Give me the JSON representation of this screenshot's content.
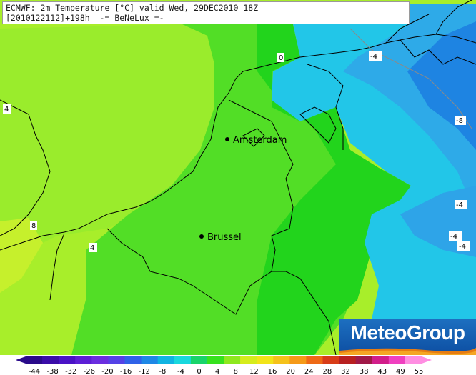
{
  "header": {
    "line1": "ECMWF: 2m Temperature [°C] valid Wed, 29DEC2010 18Z",
    "line2": "[2010122112]+198h  -= BeNeLux =-"
  },
  "logo": {
    "text": "MeteoGroup"
  },
  "cities": [
    {
      "name": "Amsterdam"
    },
    {
      "name": "Brussel"
    }
  ],
  "contour_labels": [
    "0",
    "-4",
    "-8",
    "4",
    "8",
    "4",
    "-4",
    "-4",
    "-4"
  ],
  "legend": {
    "ticks": [
      "-44",
      "-38",
      "-32",
      "-26",
      "-20",
      "-16",
      "-12",
      "-8",
      "-4",
      "0",
      "4",
      "8",
      "12",
      "16",
      "20",
      "24",
      "28",
      "32",
      "38",
      "43",
      "49",
      "55"
    ],
    "colors": [
      "#2a0a8a",
      "#3a0ca8",
      "#4a12c6",
      "#5c1fd6",
      "#6a2ee0",
      "#5442e6",
      "#2f62e8",
      "#1e88e6",
      "#10b4e2",
      "#18d8de",
      "#18d46a",
      "#36e21e",
      "#8ee81e",
      "#d6ec1c",
      "#f2e418",
      "#f5c21a",
      "#f59a18",
      "#ee6a16",
      "#d83c18",
      "#b82020",
      "#a01a48",
      "#d21e8a",
      "#f040c0",
      "#ff8ee2"
    ]
  },
  "colors": {
    "land_north_east": "#00c8f0",
    "deep_cold": "#1a7ee6",
    "cold": "#3aa6ee",
    "green_zero": "#1ed81e",
    "green_mid": "#3ee02c",
    "green_light": "#6ae834",
    "green_yellow": "#a2ee2a",
    "yellowish": "#c6f02c"
  }
}
